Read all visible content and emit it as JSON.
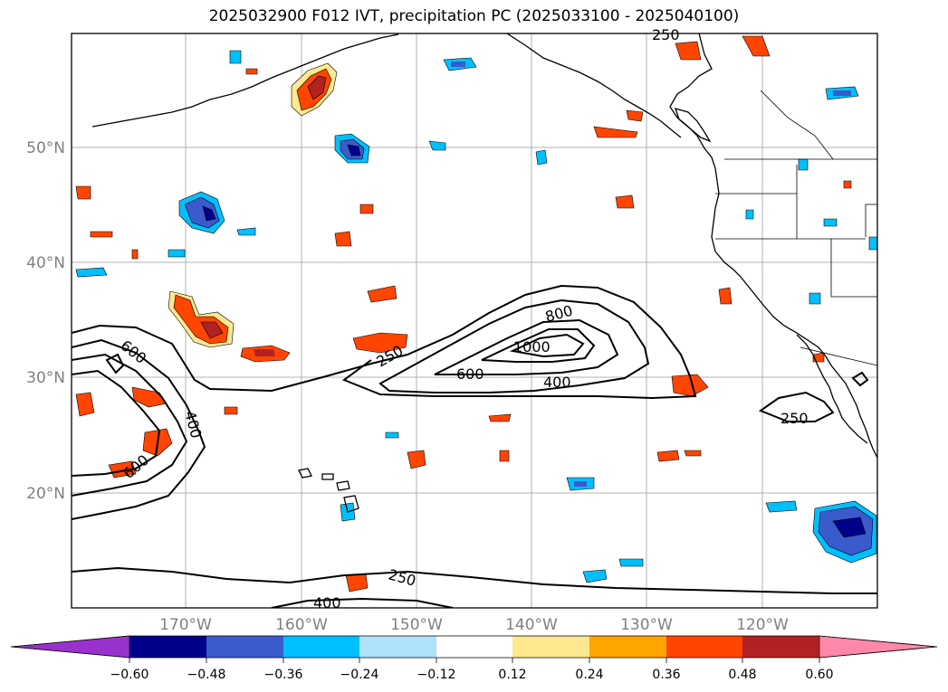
{
  "title": "2025032900 F012 IVT, precipitation PC (2025033100 - 2025040100)",
  "lat_labels": [
    "50°N",
    "40°N",
    "30°N",
    "20°N"
  ],
  "lon_labels": [
    "170°W",
    "160°W",
    "150°W",
    "140°W",
    "130°W",
    "120°W"
  ],
  "contour_labels": [
    "250",
    "600",
    "400",
    "600",
    "250",
    "600",
    "800",
    "1000",
    "400",
    "250",
    "250",
    "400"
  ],
  "colorbar": {
    "tick_labels": [
      "−0.60",
      "−0.48",
      "−0.36",
      "−0.24",
      "−0.12",
      "0.12",
      "0.24",
      "0.36",
      "0.48",
      "0.60"
    ],
    "colors": [
      "#9932CC",
      "#00008B",
      "#3A5BCC",
      "#00BFFF",
      "#ADE2FA",
      "#FFFFFF",
      "#FFE88F",
      "#FFA500",
      "#FF4500",
      "#B22222",
      "#FF88AA"
    ]
  },
  "colors": {
    "neg_strong": "#00008B",
    "neg_mid": "#3A5BCC",
    "neg_weak": "#00BFFF",
    "neg_faint": "#ADE2FA",
    "pos_faint": "#FFE88F",
    "pos_weak": "#FFA500",
    "pos_mid": "#FF4500",
    "pos_strong": "#B22222"
  }
}
